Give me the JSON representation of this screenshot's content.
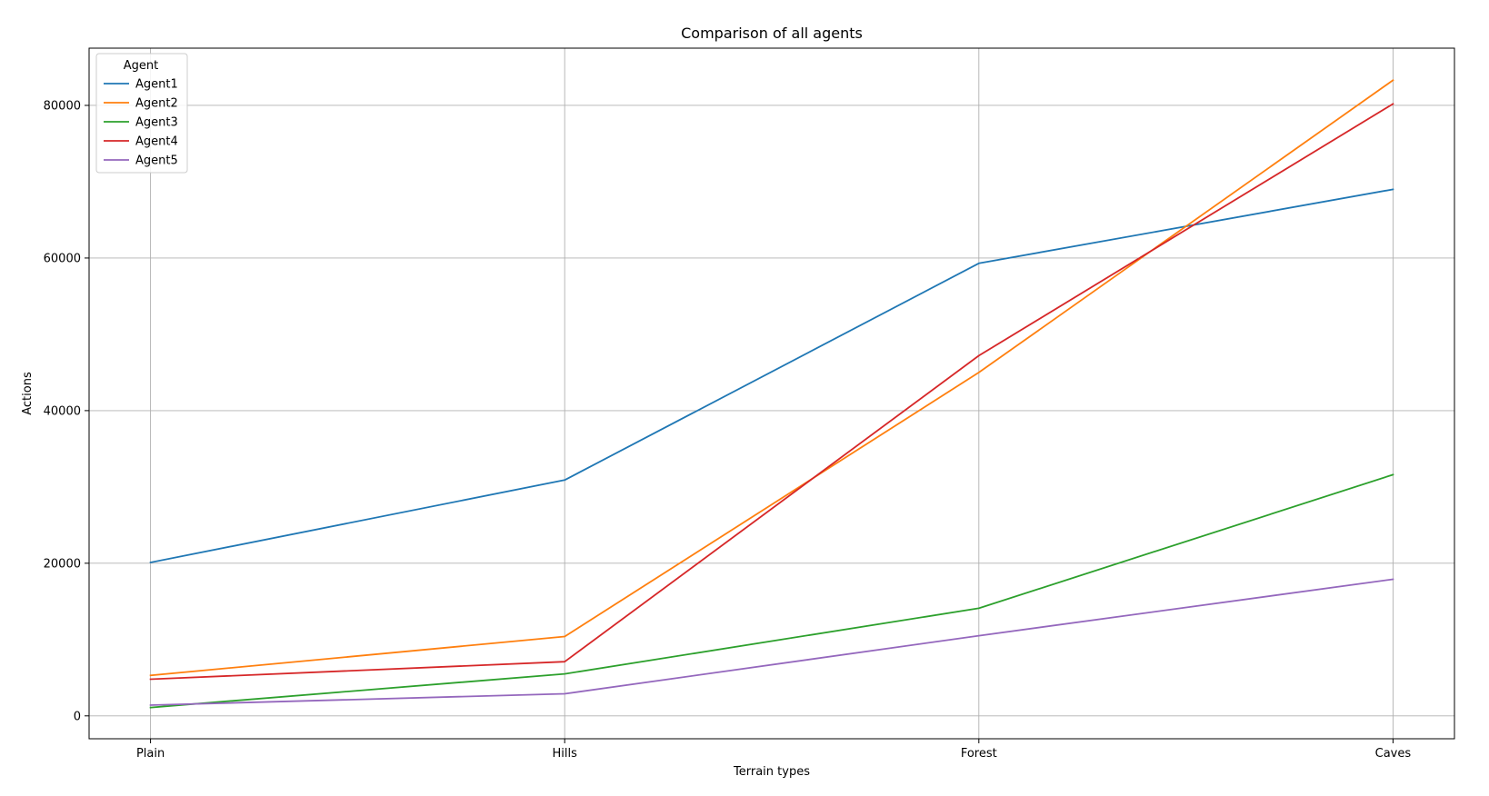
{
  "chart_data": {
    "type": "line",
    "title": "Comparison of all agents",
    "xlabel": "Terrain types",
    "ylabel": "Actions",
    "categories": [
      "Plain",
      "Hills",
      "Forest",
      "Caves"
    ],
    "ylim": [
      -3000,
      87500
    ],
    "yticks": [
      0,
      20000,
      40000,
      60000,
      80000
    ],
    "grid": true,
    "legend": {
      "title": "Agent",
      "position": "top-left"
    },
    "series": [
      {
        "name": "Agent1",
        "color": "#1f77b4",
        "values": [
          20100,
          30900,
          59300,
          69000
        ]
      },
      {
        "name": "Agent2",
        "color": "#ff7f0e",
        "values": [
          5300,
          10400,
          45000,
          83300
        ]
      },
      {
        "name": "Agent3",
        "color": "#2ca02c",
        "values": [
          1100,
          5500,
          14100,
          31600
        ]
      },
      {
        "name": "Agent4",
        "color": "#d62728",
        "values": [
          4800,
          7100,
          47200,
          80200
        ]
      },
      {
        "name": "Agent5",
        "color": "#9467bd",
        "values": [
          1400,
          2900,
          10500,
          17900
        ]
      }
    ]
  }
}
